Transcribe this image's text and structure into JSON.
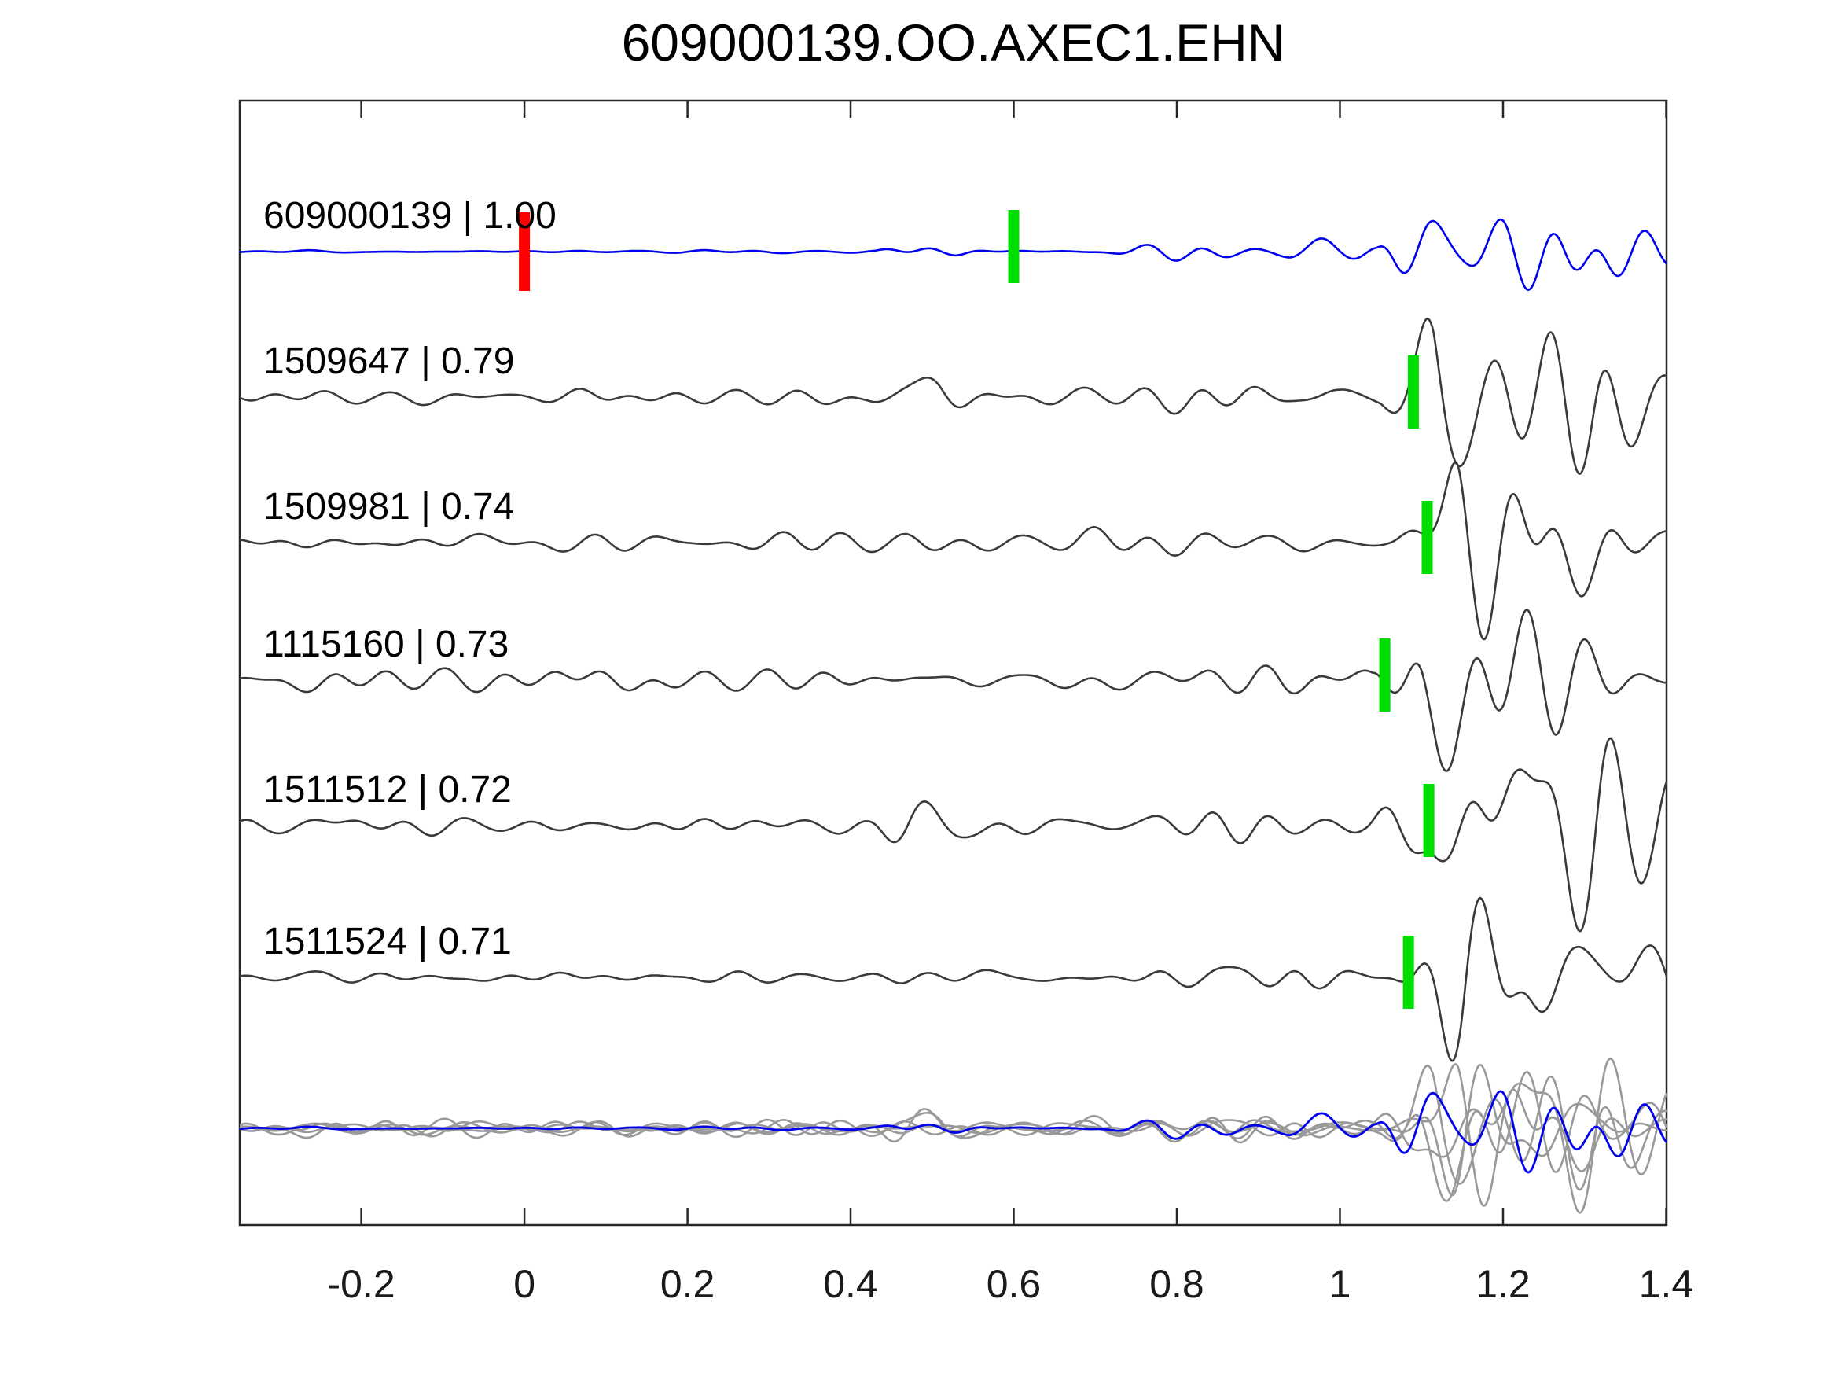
{
  "chart_data": {
    "type": "line",
    "title": "609000139.OO.AXEC1.EHN",
    "subtitle": "",
    "xlabel": "",
    "ylabel": "",
    "xlim": [
      -0.349,
      1.4005
    ],
    "x_ticks": [
      -0.2,
      0,
      0.2,
      0.4,
      0.6,
      0.8,
      1.0,
      1.2,
      1.4
    ],
    "x_tick_labels": [
      "-0.2",
      "0",
      "0.2",
      "0.4",
      "0.6",
      "0.8",
      "1",
      "1.2",
      "1.4"
    ],
    "grid": false,
    "legend_position": "none",
    "colors": {
      "reference_trace": "#0000ee",
      "match_trace": "#3a3a3a",
      "overlay_gray": "#999999",
      "pick_green": "#00dd00",
      "pick_red": "#ff0000",
      "axis": "#262626",
      "text": "#000000"
    },
    "series": [
      {
        "name": "609000139",
        "correlation": "1.00",
        "label": "609000139 | 1.00",
        "role": "reference",
        "color": "#0000ee",
        "picks": [
          {
            "t": 0.0,
            "color": "#ff0000",
            "kind": "origin-pick"
          },
          {
            "t": 0.6,
            "color": "#00dd00",
            "kind": "phase-pick"
          }
        ],
        "seed": 101,
        "envelope": [
          [
            -0.35,
            1.2
          ],
          [
            0.43,
            1.5
          ],
          [
            0.47,
            6
          ],
          [
            0.53,
            7
          ],
          [
            0.6,
            3
          ],
          [
            0.68,
            2.5
          ],
          [
            0.73,
            7
          ],
          [
            0.79,
            9
          ],
          [
            0.87,
            10
          ],
          [
            0.94,
            12
          ],
          [
            1.0,
            7
          ],
          [
            1.045,
            9
          ],
          [
            1.09,
            45
          ],
          [
            1.14,
            88
          ],
          [
            1.19,
            65
          ],
          [
            1.25,
            55
          ],
          [
            1.31,
            50
          ],
          [
            1.37,
            40
          ],
          [
            1.41,
            34
          ]
        ]
      },
      {
        "name": "1509647",
        "correlation": "0.79",
        "label": "1509647 | 0.79",
        "role": "match",
        "color": "#3a3a3a",
        "picks": [
          {
            "t": 1.09,
            "color": "#00dd00",
            "kind": "phase-pick"
          }
        ],
        "seed": 202,
        "envelope": [
          [
            -0.35,
            8
          ],
          [
            0.42,
            9
          ],
          [
            0.465,
            20
          ],
          [
            0.51,
            24
          ],
          [
            0.56,
            15
          ],
          [
            0.66,
            11
          ],
          [
            0.76,
            13
          ],
          [
            0.86,
            15
          ],
          [
            0.93,
            18
          ],
          [
            1.0,
            13
          ],
          [
            1.05,
            18
          ],
          [
            1.085,
            60
          ],
          [
            1.115,
            135
          ],
          [
            1.17,
            100
          ],
          [
            1.24,
            68
          ],
          [
            1.31,
            80
          ],
          [
            1.37,
            60
          ],
          [
            1.41,
            45
          ]
        ]
      },
      {
        "name": "1509981",
        "correlation": "0.74",
        "label": "1509981 | 0.74",
        "role": "match",
        "color": "#3a3a3a",
        "picks": [
          {
            "t": 1.107,
            "color": "#00dd00",
            "kind": "phase-pick"
          }
        ],
        "seed": 303,
        "envelope": [
          [
            -0.35,
            9
          ],
          [
            0.44,
            10
          ],
          [
            0.49,
            13
          ],
          [
            0.57,
            11
          ],
          [
            0.67,
            12
          ],
          [
            0.77,
            12
          ],
          [
            0.87,
            14
          ],
          [
            0.95,
            15
          ],
          [
            1.02,
            12
          ],
          [
            1.06,
            14
          ],
          [
            1.1,
            45
          ],
          [
            1.145,
            130
          ],
          [
            1.2,
            105
          ],
          [
            1.27,
            75
          ],
          [
            1.33,
            60
          ],
          [
            1.41,
            42
          ]
        ]
      },
      {
        "name": "1115160",
        "correlation": "0.73",
        "label": "1115160 | 0.73",
        "role": "match",
        "color": "#3a3a3a",
        "picks": [
          {
            "t": 1.055,
            "color": "#00dd00",
            "kind": "phase-pick"
          }
        ],
        "seed": 404,
        "envelope": [
          [
            -0.35,
            12
          ],
          [
            0.45,
            12
          ],
          [
            0.55,
            11
          ],
          [
            0.65,
            12
          ],
          [
            0.75,
            13
          ],
          [
            0.85,
            14
          ],
          [
            0.93,
            15
          ],
          [
            1.0,
            13
          ],
          [
            1.04,
            18
          ],
          [
            1.075,
            70
          ],
          [
            1.1,
            115
          ],
          [
            1.15,
            85
          ],
          [
            1.2,
            65
          ],
          [
            1.27,
            48
          ],
          [
            1.34,
            32
          ],
          [
            1.41,
            26
          ]
        ]
      },
      {
        "name": "1511512",
        "correlation": "0.72",
        "label": "1511512 | 0.72",
        "role": "match",
        "color": "#3a3a3a",
        "picks": [
          {
            "t": 1.109,
            "color": "#00dd00",
            "kind": "phase-pick"
          }
        ],
        "seed": 505,
        "envelope": [
          [
            -0.35,
            8
          ],
          [
            0.42,
            10
          ],
          [
            0.47,
            19
          ],
          [
            0.53,
            22
          ],
          [
            0.59,
            14
          ],
          [
            0.68,
            12
          ],
          [
            0.78,
            15
          ],
          [
            0.88,
            17
          ],
          [
            0.95,
            15
          ],
          [
            1.03,
            15
          ],
          [
            1.07,
            45
          ],
          [
            1.12,
            85
          ],
          [
            1.18,
            90
          ],
          [
            1.25,
            95
          ],
          [
            1.32,
            112
          ],
          [
            1.38,
            70
          ],
          [
            1.41,
            55
          ]
        ]
      },
      {
        "name": "1511524",
        "correlation": "0.71",
        "label": "1511524 | 0.71",
        "role": "match",
        "color": "#3a3a3a",
        "picks": [
          {
            "t": 1.084,
            "color": "#00dd00",
            "kind": "phase-pick"
          }
        ],
        "seed": 606,
        "envelope": [
          [
            -0.35,
            5
          ],
          [
            0.42,
            6
          ],
          [
            0.465,
            12
          ],
          [
            0.52,
            11
          ],
          [
            0.58,
            8
          ],
          [
            0.68,
            6
          ],
          [
            0.78,
            9
          ],
          [
            0.88,
            11
          ],
          [
            0.95,
            13
          ],
          [
            1.02,
            8
          ],
          [
            1.06,
            16
          ],
          [
            1.1,
            55
          ],
          [
            1.15,
            112
          ],
          [
            1.22,
            90
          ],
          [
            1.29,
            60
          ],
          [
            1.35,
            55
          ],
          [
            1.41,
            40
          ]
        ]
      }
    ],
    "overlay": {
      "description": "all matched traces superimposed with reference",
      "gray_color": "#999999",
      "reference_color": "#0000ee",
      "gray_scale": 0.8,
      "reference_scale": 1.15
    }
  }
}
